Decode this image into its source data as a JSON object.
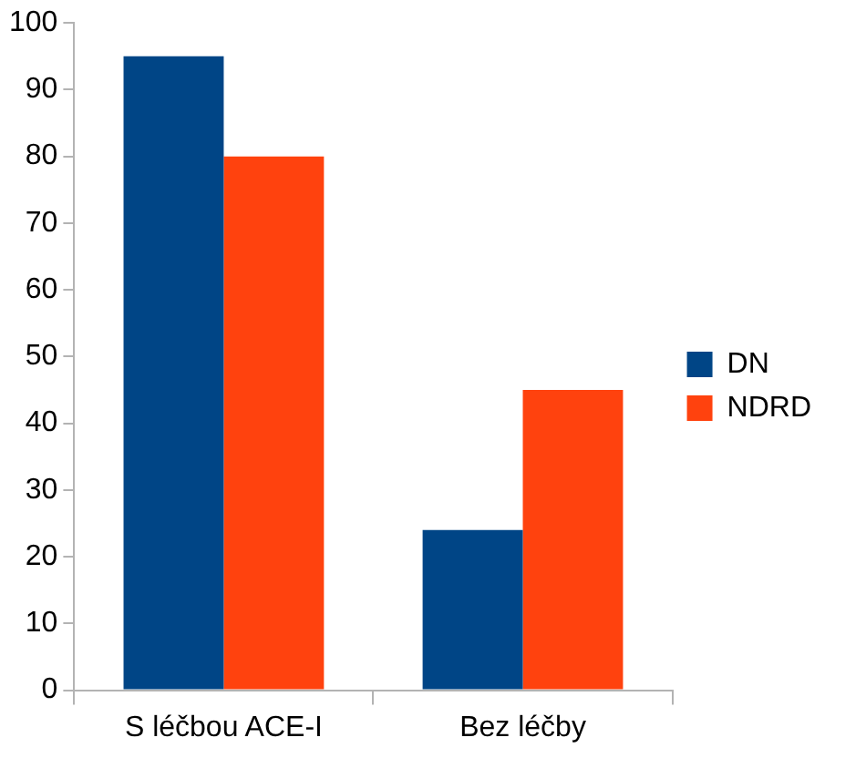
{
  "chart_data": {
    "type": "bar",
    "categories": [
      "S léčbou ACE-I",
      "Bez léčby"
    ],
    "series": [
      {
        "name": "DN",
        "color": "#004586",
        "values": [
          95,
          24
        ]
      },
      {
        "name": "NDRD",
        "color": "#ff420e",
        "values": [
          80,
          45
        ]
      }
    ],
    "ylim": [
      0,
      100
    ],
    "yticks": [
      0,
      10,
      20,
      30,
      40,
      50,
      60,
      70,
      80,
      90,
      100
    ],
    "grid": false,
    "legend": "right"
  }
}
